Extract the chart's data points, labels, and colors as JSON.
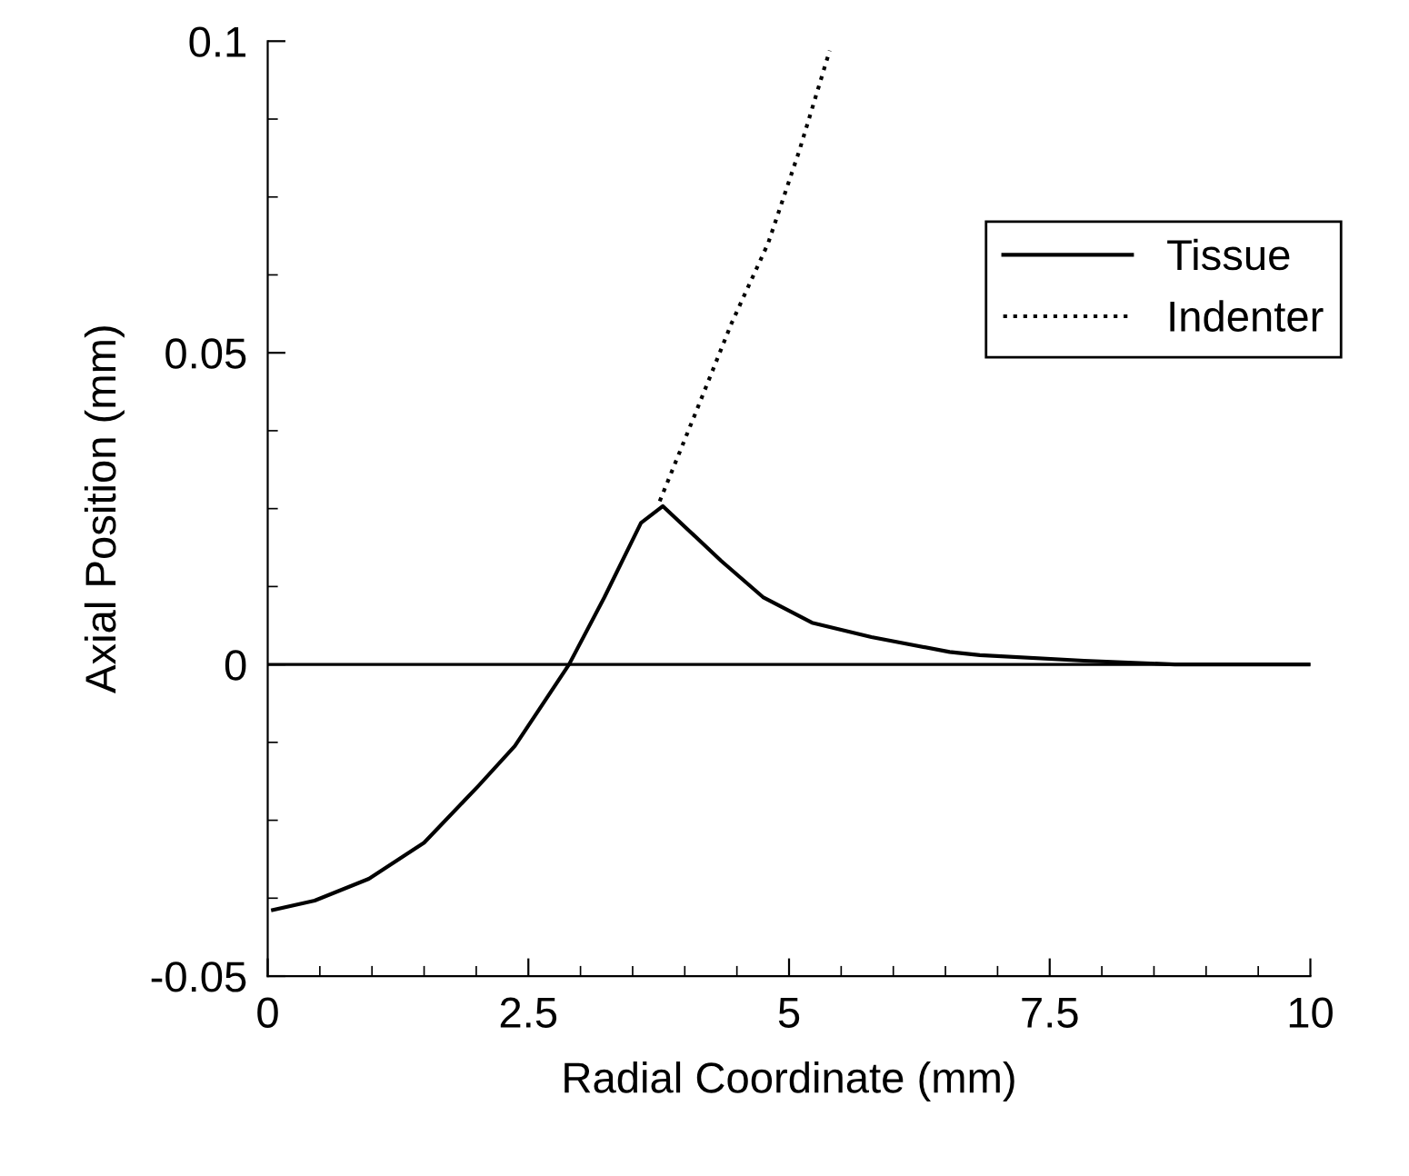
{
  "chart_data": {
    "type": "line",
    "xlabel": "Radial Coordinate (mm)",
    "ylabel": "Axial Position (mm)",
    "xlim": [
      0,
      10
    ],
    "ylim": [
      -0.05,
      0.1
    ],
    "xticks": [
      0,
      {
        "value": 0.5,
        "label": null
      },
      {
        "value": 1,
        "label": null
      },
      {
        "value": 1.5,
        "label": null
      },
      {
        "value": 2,
        "label": null
      },
      2.5,
      {
        "value": 3,
        "label": null
      },
      {
        "value": 3.5,
        "label": null
      },
      {
        "value": 4,
        "label": null
      },
      {
        "value": 4.5,
        "label": null
      },
      5,
      {
        "value": 5.5,
        "label": null
      },
      {
        "value": 6,
        "label": null
      },
      {
        "value": 6.5,
        "label": null
      },
      {
        "value": 7,
        "label": null
      },
      7.5,
      {
        "value": 8,
        "label": null
      },
      {
        "value": 8.5,
        "label": null
      },
      {
        "value": 9,
        "label": null
      },
      {
        "value": 9.5,
        "label": null
      },
      10
    ],
    "yticks": [
      -0.05,
      {
        "value": -0.0375,
        "label": null
      },
      {
        "value": -0.025,
        "label": null
      },
      {
        "value": -0.0125,
        "label": null
      },
      0,
      {
        "value": 0.0125,
        "label": null
      },
      {
        "value": 0.025,
        "label": null
      },
      {
        "value": 0.0375,
        "label": null
      },
      0.05,
      {
        "value": 0.0625,
        "label": null
      },
      {
        "value": 0.075,
        "label": null
      },
      {
        "value": 0.0875,
        "label": null
      },
      0.1
    ],
    "series": [
      {
        "name": "Tissue",
        "color": "#000000",
        "line_style": "solid",
        "x": [
          0.05,
          0.45,
          0.97,
          1.5,
          2.02,
          2.37,
          2.66,
          2.89,
          3.23,
          3.58,
          3.79,
          4.35,
          4.75,
          5.22,
          5.79,
          6.54,
          6.83,
          7.83,
          8.7,
          10
        ],
        "values": [
          -0.0394,
          -0.0379,
          -0.0344,
          -0.0286,
          -0.0195,
          -0.0131,
          -0.0058,
          0,
          0.0108,
          0.0227,
          0.0254,
          0.0166,
          0.0108,
          0.0067,
          0.0044,
          0.002,
          0.0015,
          0.0006,
          0,
          0
        ]
      },
      {
        "name": "Indenter",
        "color": "#000000",
        "line_style": "dotted",
        "x": [
          3.76,
          4.1,
          4.45,
          4.8,
          5.1,
          5.39
        ],
        "values": [
          0.0262,
          0.0402,
          0.0548,
          0.0676,
          0.0825,
          0.0985
        ]
      }
    ],
    "ref_lines": [
      {
        "axis": "y",
        "value": 0,
        "color": "#000000",
        "line_style": "solid"
      }
    ],
    "legend": "upper right",
    "grid": false,
    "marker": "none"
  }
}
